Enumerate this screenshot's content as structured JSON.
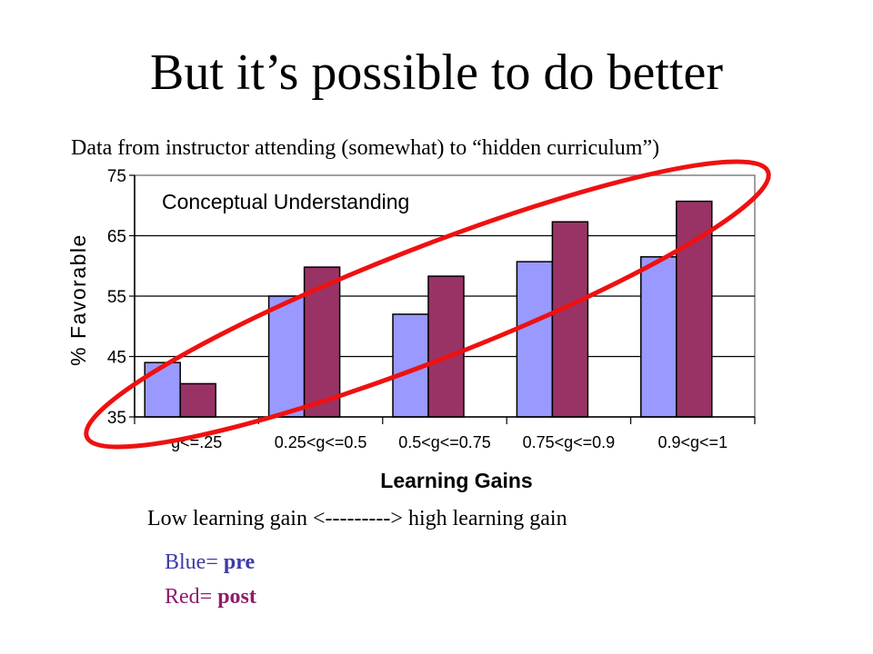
{
  "slide": {
    "title": "But it’s possible to do better",
    "subtitle": "Data from instructor attending (somewhat) to “hidden curriculum”)",
    "range_caption": "Low learning gain <---------> high learning gain",
    "legend": {
      "pre_label": "Blue= ",
      "pre_value": "pre",
      "post_label": "Red= ",
      "post_value": "post",
      "pre_color": "#3b3ba8",
      "post_color": "#8e1c6b"
    }
  },
  "chart_data": {
    "type": "bar",
    "title": "Conceptual Understanding",
    "xlabel": "Learning Gains",
    "ylabel": "% Favorable",
    "categories": [
      "g<=.25",
      "0.25<g<=0.5",
      "0.5<g<=0.75",
      "0.75<g<=0.9",
      "0.9<g<=1"
    ],
    "series": [
      {
        "values": [
          44,
          55,
          52,
          60.7,
          61.5
        ],
        "color": "#9999ff"
      },
      {
        "values": [
          40.5,
          59.8,
          58.3,
          67.3,
          70.7
        ],
        "color": "#993366"
      }
    ],
    "ylim": [
      35,
      75
    ],
    "yticks": [
      "35",
      "45",
      "55",
      "65",
      "75"
    ],
    "grid": true,
    "annotation": {
      "shape": "ellipse",
      "color": "#ee1111"
    }
  }
}
